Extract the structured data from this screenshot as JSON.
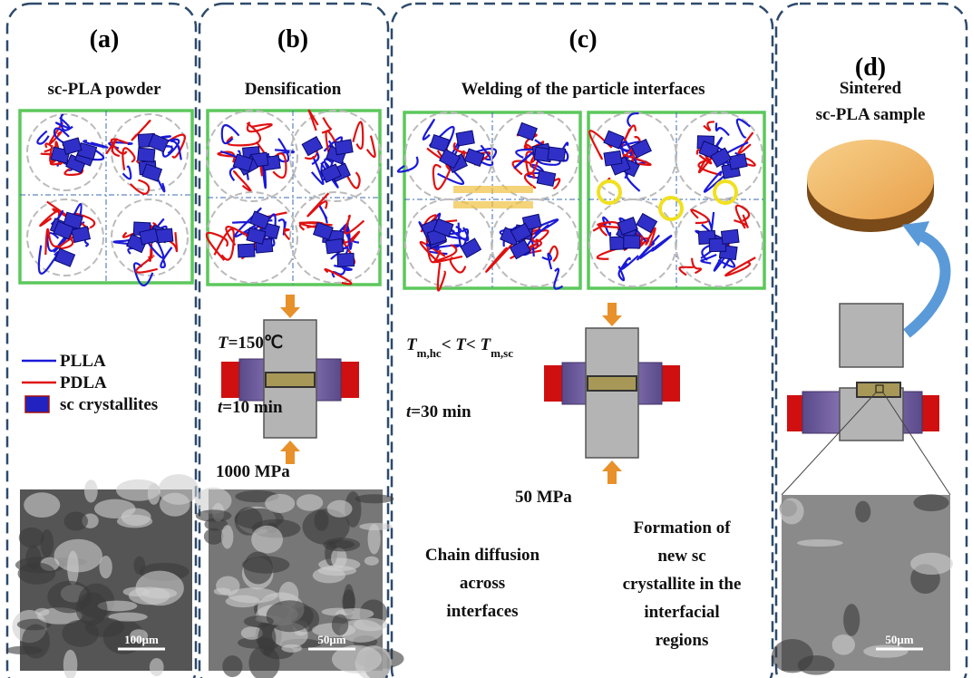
{
  "panels": [
    {
      "label": "(a)",
      "title": [
        "sc-PLA powder"
      ],
      "legend": [
        {
          "name": "PLLA",
          "color": "#1a1ad8"
        },
        {
          "name": "PDLA",
          "color": "#e01010"
        },
        {
          "name": "sc crystallites",
          "color": "#2222c0"
        }
      ],
      "scale_bar": "100μm"
    },
    {
      "label": "(b)",
      "title": [
        "Densification"
      ],
      "temperature": [
        {
          "t": "T",
          "italic": true
        },
        {
          "t": "=150℃"
        }
      ],
      "time": [
        {
          "t": "t",
          "italic": true
        },
        {
          "t": "=10 min"
        }
      ],
      "pressure": "1000 MPa",
      "scale_bar": "50μm"
    },
    {
      "label": "(c)",
      "title": [
        "Welding of the particle interfaces"
      ],
      "temperature": [
        {
          "t": "T",
          "italic": true
        },
        {
          "t": "m,hc",
          "sub": true
        },
        {
          "t": "< "
        },
        {
          "t": "T",
          "italic": true
        },
        {
          "t": "< "
        },
        {
          "t": "T",
          "italic": true
        },
        {
          "t": "m,sc",
          "sub": true
        }
      ],
      "time": [
        {
          "t": "t",
          "italic": true
        },
        {
          "t": "=30 min"
        }
      ],
      "pressure": "50 MPa",
      "notes": [
        [
          "Chain diffusion",
          "across",
          "interfaces"
        ],
        [
          "Formation of",
          "new sc",
          "crystallite in the",
          "interfacial",
          "regions"
        ]
      ]
    },
    {
      "label": "(d)",
      "title": [
        "Sintered",
        "sc-PLA sample"
      ],
      "scale_bar": "50μm"
    }
  ]
}
